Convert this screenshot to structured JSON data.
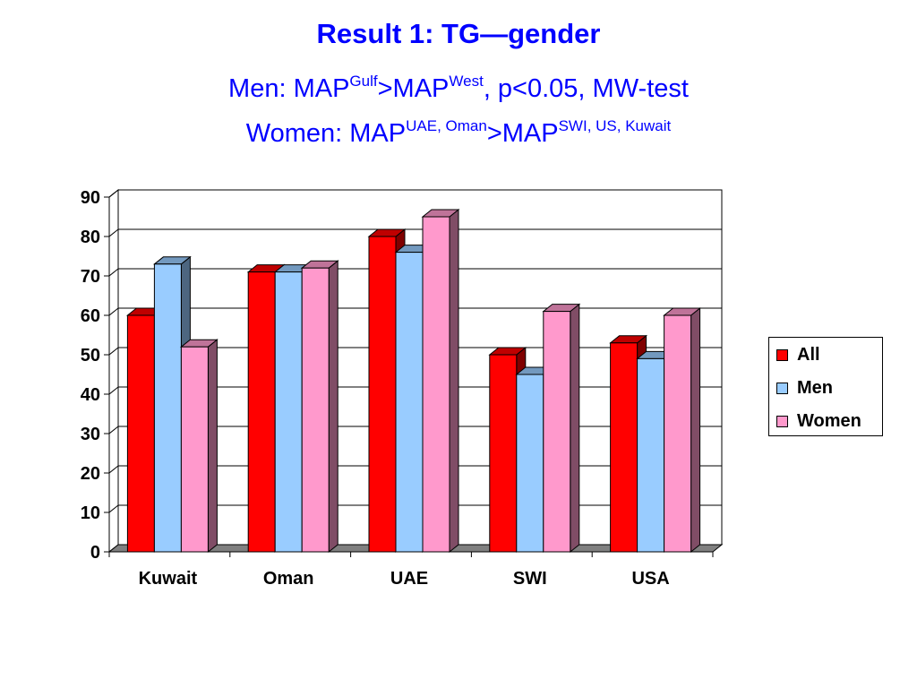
{
  "title": "Result 1: TG—gender",
  "subtitle_men": {
    "prefix": "Men: MAP",
    "sup1": "Gulf",
    "mid": ">MAP",
    "sup2": "West",
    "suffix": ", p<0.05, MW-test"
  },
  "subtitle_women": {
    "prefix": "Women: MAP",
    "sup1": "UAE, Oman",
    "mid": ">MAP",
    "sup2": "SWI, US, Kuwait"
  },
  "colors": {
    "All": "#ff0000",
    "Men": "#99ccff",
    "Women": "#ff99cc"
  },
  "chart_data": {
    "type": "bar",
    "title": "Result 1: TG—gender",
    "categories": [
      "Kuwait",
      "Oman",
      "UAE",
      "SWI",
      "USA"
    ],
    "series": [
      {
        "name": "All",
        "values": [
          60,
          71,
          80,
          50,
          53
        ]
      },
      {
        "name": "Men",
        "values": [
          73,
          71,
          76,
          45,
          49
        ]
      },
      {
        "name": "Women",
        "values": [
          52,
          72,
          85,
          61,
          60
        ]
      }
    ],
    "ylim": [
      0,
      90
    ],
    "yticks": [
      "0",
      "10",
      "20",
      "30",
      "40",
      "50",
      "60",
      "70",
      "80",
      "90"
    ],
    "grid": true,
    "legend_position": "right",
    "style": "3d"
  }
}
